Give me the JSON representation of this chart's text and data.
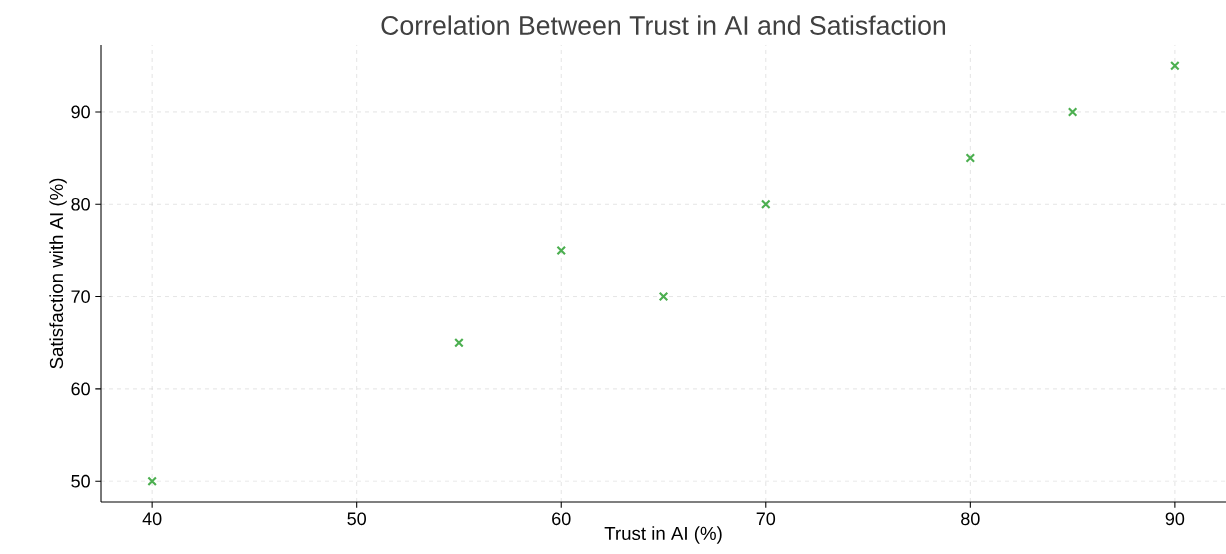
{
  "chart_data": {
    "type": "scatter",
    "title": "Correlation Between Trust in AI and Satisfaction",
    "xlabel": "Trust in AI (%)",
    "ylabel": "Satisfaction with AI (%)",
    "x": [
      40,
      55,
      60,
      65,
      70,
      80,
      85,
      90
    ],
    "values": [
      50,
      65,
      75,
      70,
      80,
      85,
      90,
      95
    ],
    "color": "#4caf50",
    "marker": "cross",
    "grid": true,
    "xlim": [
      37.5,
      92.5
    ],
    "ylim": [
      47.75,
      97.25
    ],
    "xticks": [
      40,
      50,
      60,
      70,
      80,
      90
    ],
    "yticks": [
      50,
      60,
      70,
      80,
      90
    ]
  }
}
